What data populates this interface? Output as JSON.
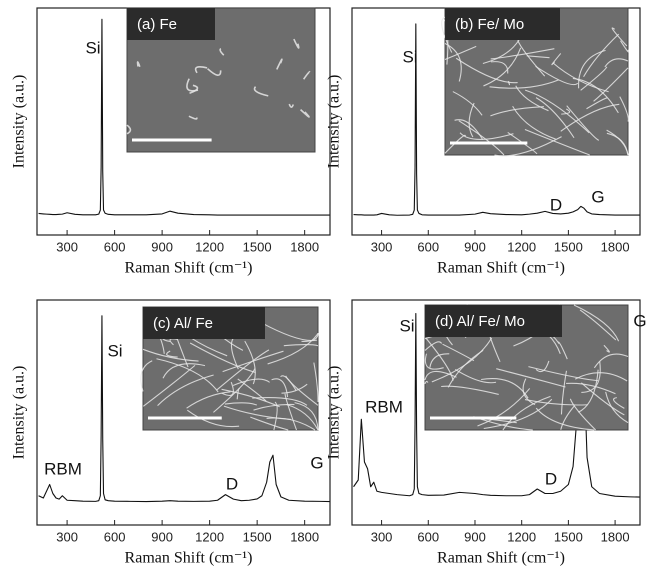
{
  "chart_data": [
    {
      "type": "line",
      "inset_label": "(a) Fe",
      "y_label": "Intensity (a.u.)",
      "x_label": "Raman Shift (cm⁻¹)",
      "annotations": [
        "Si"
      ],
      "x": [
        120,
        150,
        170,
        190,
        210,
        230,
        250,
        270,
        300,
        350,
        400,
        480,
        500,
        510,
        515,
        520,
        525,
        530,
        540,
        560,
        600,
        700,
        800,
        900,
        950,
        1000,
        1100,
        1200,
        1250,
        1300,
        1350,
        1400,
        1450,
        1500,
        1530,
        1560,
        1580,
        1600,
        1620,
        1650,
        1700,
        1800,
        1900,
        1960
      ],
      "xlim": [
        110,
        1960
      ],
      "xticks": [
        300,
        600,
        900,
        1200,
        1500,
        1800
      ],
      "ylim": [
        0,
        100
      ],
      "series": [
        {
          "color": "#111111",
          "values": [
            9.5,
            9.3,
            9.2,
            9.1,
            9.0,
            9.0,
            9.1,
            9.2,
            9.8,
            9.1,
            8.9,
            8.9,
            9.2,
            11,
            30,
            95,
            28,
            11,
            9.6,
            9.1,
            8.9,
            8.9,
            8.9,
            9.3,
            10.5,
            9.6,
            9.0,
            8.9,
            8.8,
            8.8,
            8.8,
            8.8,
            8.8,
            8.8,
            8.8,
            8.8,
            8.8,
            8.8,
            8.8,
            8.8,
            8.8,
            8.8,
            8.8,
            8.8
          ]
        }
      ]
    },
    {
      "type": "line",
      "inset_label": "(b) Fe/ Mo",
      "y_label": "Intensity (a.u.)",
      "x_label": "Raman Shift (cm⁻¹)",
      "annotations": [
        "Si",
        "D",
        "G"
      ],
      "x": [
        120,
        150,
        170,
        190,
        210,
        230,
        250,
        270,
        300,
        350,
        400,
        480,
        500,
        510,
        515,
        520,
        525,
        530,
        540,
        560,
        600,
        700,
        800,
        900,
        950,
        1000,
        1100,
        1200,
        1250,
        1300,
        1350,
        1400,
        1450,
        1500,
        1530,
        1560,
        1580,
        1600,
        1620,
        1650,
        1700,
        1800,
        1900,
        1960
      ],
      "xlim": [
        110,
        1960
      ],
      "xticks": [
        300,
        600,
        900,
        1200,
        1500,
        1800
      ],
      "ylim": [
        0,
        100
      ],
      "series": [
        {
          "color": "#111111",
          "values": [
            9.0,
            8.9,
            8.9,
            8.8,
            8.8,
            8.8,
            8.8,
            8.9,
            9.5,
            8.9,
            8.7,
            8.8,
            9.1,
            11,
            30,
            93,
            27,
            11,
            9.5,
            8.9,
            8.8,
            8.8,
            8.8,
            9.2,
            10.0,
            9.4,
            9.0,
            8.9,
            9.2,
            9.6,
            10.4,
            9.5,
            9.3,
            9.6,
            10.2,
            11.2,
            12.6,
            11.8,
            10.2,
            9.3,
            9.0,
            8.8,
            8.8,
            8.8
          ]
        }
      ]
    },
    {
      "type": "line",
      "inset_label": "(c) Al/ Fe",
      "y_label": "Intensity (a.u.)",
      "x_label": "Raman Shift (cm⁻¹)",
      "annotations": [
        "Si",
        "RBM",
        "D",
        "G"
      ],
      "x": [
        120,
        150,
        170,
        190,
        210,
        230,
        250,
        270,
        300,
        350,
        400,
        480,
        500,
        510,
        515,
        520,
        525,
        530,
        540,
        560,
        600,
        700,
        800,
        900,
        950,
        1000,
        1100,
        1200,
        1250,
        1300,
        1350,
        1400,
        1450,
        1500,
        1530,
        1560,
        1580,
        1600,
        1620,
        1650,
        1700,
        1800,
        1900,
        1960
      ],
      "xlim": [
        110,
        1960
      ],
      "xticks": [
        300,
        600,
        900,
        1200,
        1500,
        1800
      ],
      "ylim": [
        0,
        100
      ],
      "series": [
        {
          "color": "#111111",
          "values": [
            13,
            12,
            15,
            18,
            14,
            12,
            11.5,
            13,
            11,
            10.8,
            10.6,
            10.5,
            10.8,
            13,
            40,
            93,
            38,
            14,
            11.2,
            10.8,
            10.6,
            10.5,
            10.4,
            10.6,
            10.8,
            10.6,
            10.5,
            10.6,
            11,
            13.5,
            11.5,
            10.8,
            11,
            11.6,
            13,
            19,
            28,
            31,
            18,
            12.5,
            11,
            10.6,
            10.5,
            10.4
          ]
        }
      ]
    },
    {
      "type": "line",
      "inset_label": "(d) Al/ Fe/ Mo",
      "y_label": "Intensity (a.u.)",
      "x_label": "Raman Shift (cm⁻¹)",
      "annotations": [
        "Si",
        "RBM",
        "D",
        "G"
      ],
      "x": [
        120,
        150,
        170,
        190,
        210,
        230,
        250,
        270,
        300,
        350,
        400,
        480,
        500,
        510,
        515,
        520,
        525,
        530,
        540,
        560,
        600,
        700,
        800,
        900,
        950,
        1000,
        1100,
        1200,
        1250,
        1300,
        1350,
        1400,
        1450,
        1500,
        1530,
        1560,
        1580,
        1600,
        1620,
        1650,
        1700,
        1800,
        1900,
        1960
      ],
      "xlim": [
        110,
        1960
      ],
      "xticks": [
        300,
        600,
        900,
        1200,
        1500,
        1800
      ],
      "ylim": [
        0,
        100
      ],
      "series": [
        {
          "color": "#111111",
          "values": [
            17,
            20,
            47,
            28,
            25,
            17,
            19,
            15,
            14.5,
            14,
            13.5,
            13,
            13.5,
            16,
            45,
            94,
            42,
            17,
            14,
            13.5,
            13.2,
            13.3,
            14.5,
            14,
            13.5,
            13.2,
            13,
            13,
            13.5,
            16,
            14,
            14,
            15,
            18,
            26,
            52,
            82,
            70,
            30,
            17,
            14,
            12.8,
            12.5,
            12.4
          ]
        }
      ]
    }
  ]
}
